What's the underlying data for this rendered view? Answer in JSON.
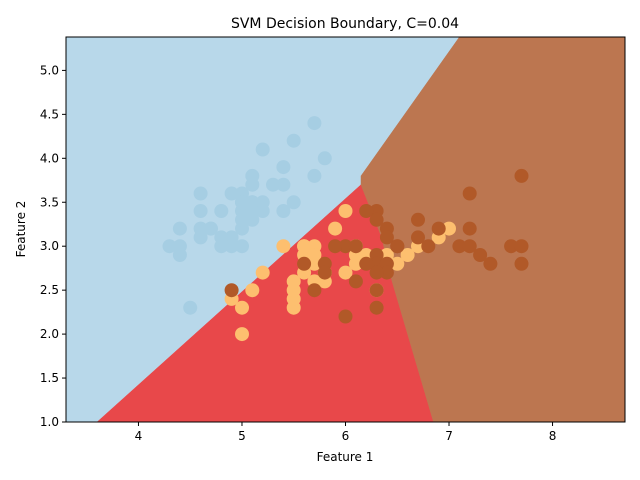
{
  "chart_data": {
    "type": "scatter",
    "title": "SVM Decision Boundary, C=0.04",
    "xlabel": "Feature 1",
    "ylabel": "Feature 2",
    "xlim": [
      3.3,
      8.7
    ],
    "ylim": [
      1.0,
      5.38
    ],
    "xticks": [
      {
        "value": 4,
        "label": "4"
      },
      {
        "value": 5,
        "label": "5"
      },
      {
        "value": 6,
        "label": "6"
      },
      {
        "value": 7,
        "label": "7"
      },
      {
        "value": 8,
        "label": "8"
      }
    ],
    "yticks": [
      {
        "value": 1.0,
        "label": "1.0"
      },
      {
        "value": 1.5,
        "label": "1.5"
      },
      {
        "value": 2.0,
        "label": "2.0"
      },
      {
        "value": 2.5,
        "label": "2.5"
      },
      {
        "value": 3.0,
        "label": "3.0"
      },
      {
        "value": 3.5,
        "label": "3.5"
      },
      {
        "value": 4.0,
        "label": "4.0"
      },
      {
        "value": 4.5,
        "label": "4.5"
      },
      {
        "value": 5.0,
        "label": "5.0"
      }
    ],
    "grid": false,
    "regions": [
      {
        "class": 0,
        "color": "#b8d8ea",
        "polygon": [
          [
            3.3,
            5.38
          ],
          [
            7.1,
            5.38
          ],
          [
            6.15,
            3.8
          ],
          [
            6.15,
            3.7
          ],
          [
            3.6,
            1.0
          ],
          [
            3.3,
            1.0
          ]
        ]
      },
      {
        "class": 1,
        "color": "#e8484a",
        "polygon": [
          [
            3.6,
            1.0
          ],
          [
            6.15,
            3.7
          ],
          [
            6.35,
            3.1
          ],
          [
            6.45,
            2.6
          ],
          [
            6.85,
            1.0
          ]
        ]
      },
      {
        "class": 2,
        "color": "#bc7650",
        "polygon": [
          [
            7.1,
            5.38
          ],
          [
            8.7,
            5.38
          ],
          [
            8.7,
            1.0
          ],
          [
            6.85,
            1.0
          ],
          [
            6.45,
            2.6
          ],
          [
            6.35,
            3.1
          ],
          [
            6.15,
            3.7
          ],
          [
            6.15,
            3.8
          ]
        ]
      }
    ],
    "series": [
      {
        "class": 0,
        "color": "#a6cee3",
        "points": [
          [
            5.1,
            3.5
          ],
          [
            4.9,
            3.0
          ],
          [
            4.7,
            3.2
          ],
          [
            4.6,
            3.1
          ],
          [
            5.0,
            3.6
          ],
          [
            5.4,
            3.9
          ],
          [
            4.6,
            3.4
          ],
          [
            5.0,
            3.4
          ],
          [
            4.4,
            2.9
          ],
          [
            4.9,
            3.1
          ],
          [
            5.4,
            3.7
          ],
          [
            4.8,
            3.4
          ],
          [
            4.8,
            3.0
          ],
          [
            4.3,
            3.0
          ],
          [
            5.8,
            4.0
          ],
          [
            5.7,
            4.4
          ],
          [
            5.1,
            3.8
          ],
          [
            5.7,
            3.8
          ],
          [
            5.4,
            3.4
          ],
          [
            5.1,
            3.7
          ],
          [
            4.6,
            3.6
          ],
          [
            5.1,
            3.3
          ],
          [
            4.8,
            3.1
          ],
          [
            5.0,
            3.0
          ],
          [
            5.2,
            3.5
          ],
          [
            5.2,
            3.4
          ],
          [
            4.7,
            3.2
          ],
          [
            5.2,
            4.1
          ],
          [
            5.5,
            4.2
          ],
          [
            5.0,
            3.2
          ],
          [
            5.5,
            3.5
          ],
          [
            4.4,
            3.0
          ],
          [
            5.1,
            3.4
          ],
          [
            5.0,
            3.5
          ],
          [
            4.5,
            2.3
          ],
          [
            4.4,
            3.2
          ],
          [
            5.0,
            3.5
          ],
          [
            5.3,
            3.7
          ],
          [
            4.6,
            3.2
          ],
          [
            5.0,
            3.3
          ],
          [
            4.9,
            3.6
          ],
          [
            5.1,
            3.5
          ]
        ]
      },
      {
        "class": 1,
        "color": "#fdbf6f",
        "points": [
          [
            6.0,
            3.4
          ],
          [
            5.4,
            3.0
          ],
          [
            5.9,
            3.2
          ],
          [
            5.6,
            3.0
          ],
          [
            5.7,
            3.0
          ],
          [
            6.1,
            3.0
          ],
          [
            7.0,
            3.2
          ],
          [
            6.9,
            3.1
          ],
          [
            5.2,
            2.7
          ],
          [
            5.0,
            2.3
          ],
          [
            5.0,
            2.0
          ],
          [
            4.9,
            2.4
          ],
          [
            5.1,
            2.5
          ],
          [
            5.5,
            2.3
          ],
          [
            5.5,
            2.4
          ],
          [
            5.5,
            2.5
          ],
          [
            5.5,
            2.6
          ],
          [
            5.6,
            2.7
          ],
          [
            5.7,
            2.6
          ],
          [
            5.7,
            2.8
          ],
          [
            5.8,
            2.6
          ],
          [
            5.8,
            2.7
          ],
          [
            6.0,
            2.7
          ],
          [
            6.1,
            2.8
          ],
          [
            6.1,
            2.9
          ],
          [
            6.2,
            2.9
          ],
          [
            6.4,
            2.9
          ],
          [
            6.5,
            2.8
          ],
          [
            6.6,
            2.9
          ],
          [
            6.7,
            3.0
          ],
          [
            6.3,
            2.5
          ],
          [
            5.6,
            2.9
          ],
          [
            5.7,
            2.9
          ],
          [
            5.6,
            3.0
          ]
        ]
      },
      {
        "class": 2,
        "color": "#b15928",
        "points": [
          [
            7.7,
            3.8
          ],
          [
            7.2,
            3.6
          ],
          [
            7.2,
            3.2
          ],
          [
            6.3,
            3.4
          ],
          [
            6.2,
            3.4
          ],
          [
            6.7,
            3.3
          ],
          [
            6.4,
            3.2
          ],
          [
            6.9,
            3.2
          ],
          [
            6.5,
            3.0
          ],
          [
            6.4,
            3.1
          ],
          [
            7.1,
            3.0
          ],
          [
            7.2,
            3.0
          ],
          [
            7.6,
            3.0
          ],
          [
            7.7,
            3.0
          ],
          [
            6.8,
            3.0
          ],
          [
            7.3,
            2.9
          ],
          [
            7.4,
            2.8
          ],
          [
            7.7,
            2.8
          ],
          [
            6.7,
            3.1
          ],
          [
            6.3,
            2.9
          ],
          [
            6.3,
            2.8
          ],
          [
            6.4,
            2.8
          ],
          [
            6.4,
            2.7
          ],
          [
            6.3,
            2.7
          ],
          [
            6.2,
            2.8
          ],
          [
            6.1,
            2.6
          ],
          [
            5.8,
            2.8
          ],
          [
            5.8,
            2.7
          ],
          [
            5.7,
            2.5
          ],
          [
            5.6,
            2.8
          ],
          [
            6.0,
            2.2
          ],
          [
            6.3,
            2.3
          ],
          [
            6.3,
            2.5
          ],
          [
            4.9,
            2.5
          ],
          [
            6.0,
            3.0
          ],
          [
            5.9,
            3.0
          ],
          [
            6.3,
            3.3
          ],
          [
            6.5,
            3.0
          ],
          [
            6.1,
            3.0
          ]
        ]
      }
    ]
  }
}
